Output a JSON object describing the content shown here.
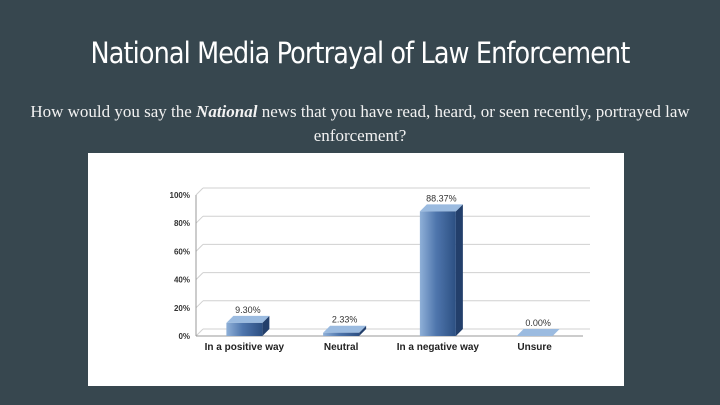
{
  "slide": {
    "title": "National Media Portrayal of Law Enforcement",
    "question_before": "How would you say the ",
    "question_emphasis": "National",
    "question_after": " news that you have read, heard, or seen recently, portrayed law enforcement?"
  },
  "colors": {
    "background": "#37474f",
    "bar": "#4a6fa5"
  },
  "chart_data": {
    "type": "bar",
    "categories": [
      "In a positive way",
      "Neutral",
      "In a negative way",
      "Unsure"
    ],
    "values": [
      9.3,
      2.33,
      88.37,
      0.0
    ],
    "data_labels": [
      "9.30%",
      "2.33%",
      "88.37%",
      "0.00%"
    ],
    "yticks": [
      "0%",
      "20%",
      "40%",
      "60%",
      "80%",
      "100%"
    ],
    "ylim": [
      0,
      100
    ],
    "grid": true,
    "title": "",
    "xlabel": "",
    "ylabel": ""
  }
}
